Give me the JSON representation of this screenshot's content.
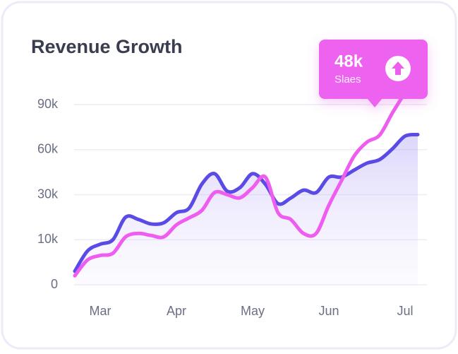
{
  "chart_data": {
    "type": "line",
    "title": "Revenue Growth",
    "categories": [
      null,
      null,
      "Mar",
      null,
      null,
      null,
      null,
      null,
      "Apr",
      null,
      null,
      null,
      null,
      null,
      "May",
      null,
      null,
      null,
      null,
      null,
      "Jun",
      null,
      null,
      null,
      null,
      null,
      "Jul",
      null
    ],
    "series": [
      {
        "color": "#5a4be6",
        "values": [
          3000,
          7500,
          9000,
          10000,
          20000,
          19000,
          17000,
          17500,
          22000,
          24000,
          37000,
          44000,
          32300,
          34700,
          44000,
          37000,
          26000,
          28500,
          33000,
          31400,
          41700,
          41700,
          46400,
          51000,
          53400,
          60500,
          69000,
          70000
        ]
      },
      {
        "color": "#ee5cf0",
        "values": [
          2000,
          5500,
          6500,
          7000,
          11250,
          12800,
          11900,
          11250,
          16600,
          19700,
          23000,
          31400,
          30000,
          28600,
          34700,
          41700,
          22000,
          19000,
          12800,
          12800,
          25300,
          39400,
          55800,
          65000,
          69700,
          84400,
          98000,
          null
        ]
      }
    ],
    "ylim": [
      0,
      100000
    ],
    "yticks": [
      {
        "value": 0,
        "label": "0"
      },
      {
        "value": 10000,
        "label": "10k"
      },
      {
        "value": 30000,
        "label": "30k"
      },
      {
        "value": 60000,
        "label": "60k"
      },
      {
        "value": 90000,
        "label": "90k"
      }
    ],
    "grid": true,
    "annotation": {
      "value": "48k",
      "label": "Slaes"
    }
  }
}
